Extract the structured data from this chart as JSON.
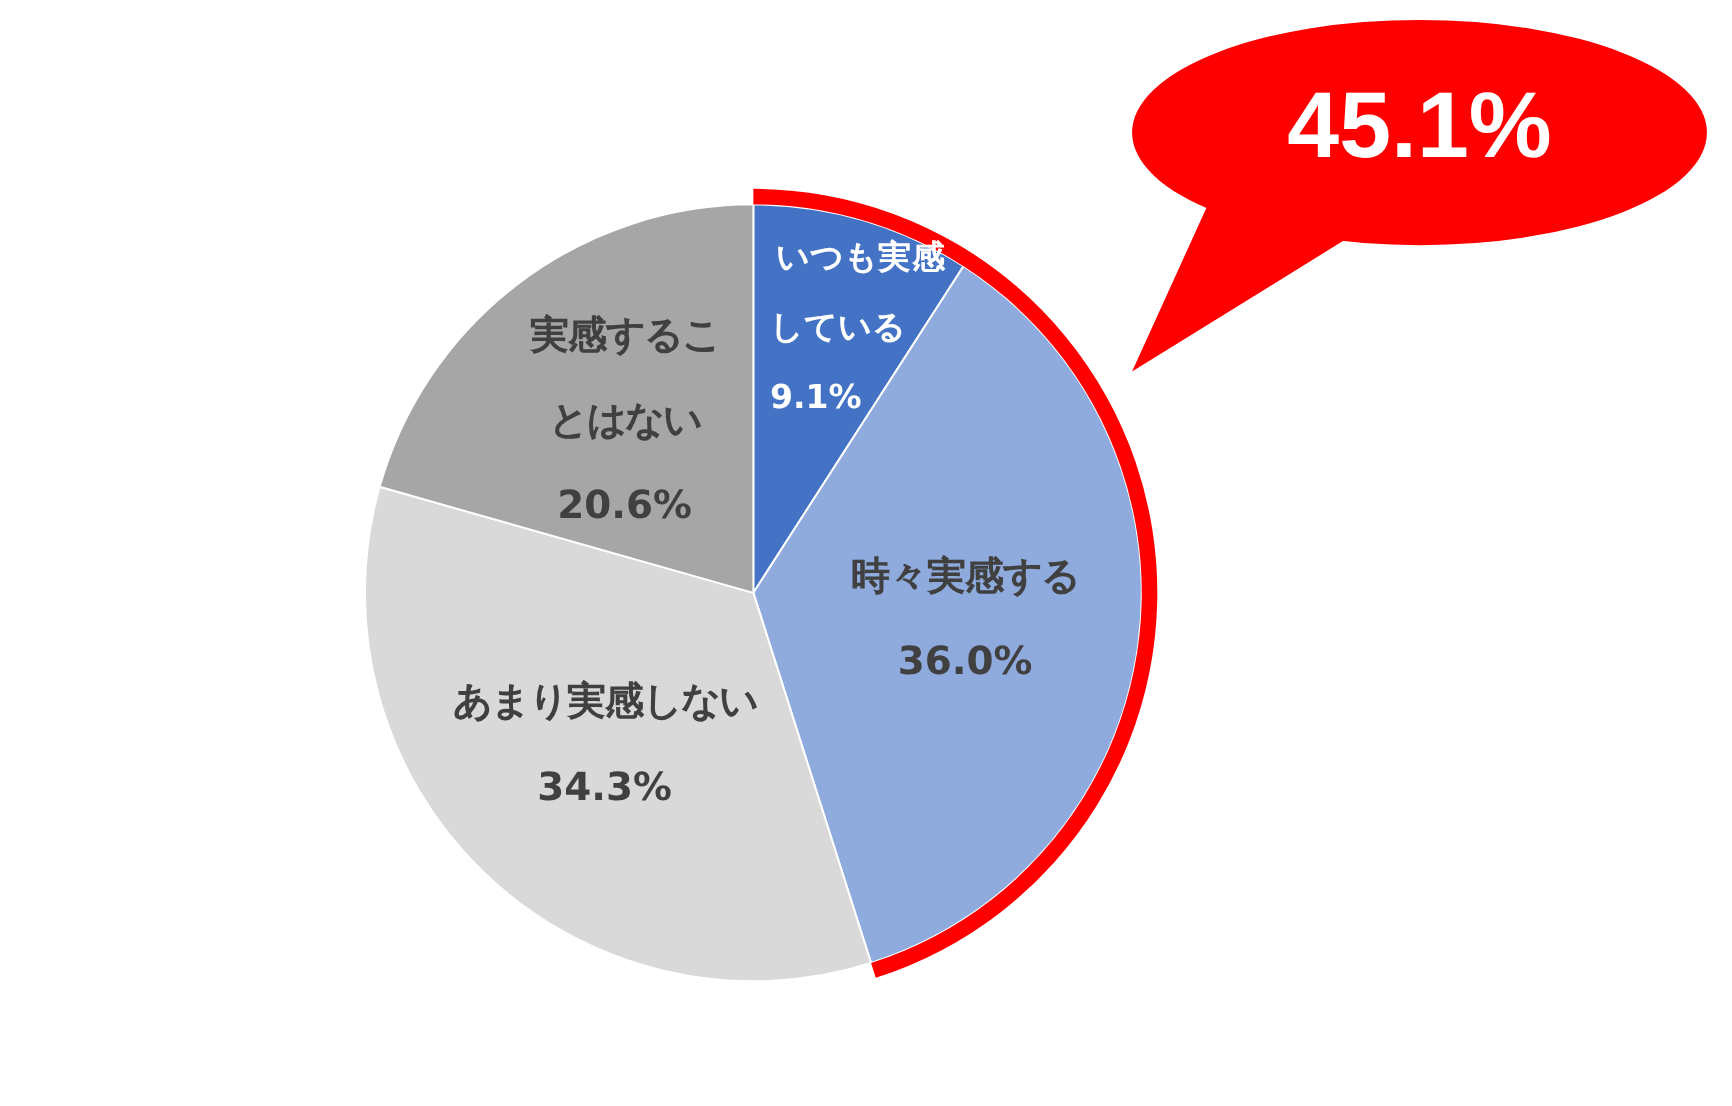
{
  "chart_data": {
    "type": "pie",
    "categories": [
      "いつも実感している",
      "時々実感する",
      "あまり実感しない",
      "実感することはない"
    ],
    "values": [
      9.1,
      36.0,
      34.3,
      20.6
    ],
    "value_labels": [
      "9.1%",
      "36.0%",
      "34.3%",
      "20.6%"
    ],
    "colors": [
      "#4472c4",
      "#8faadc",
      "#d9d9d9",
      "#a6a6a6"
    ],
    "annotations": [
      "45.1%"
    ]
  }
}
